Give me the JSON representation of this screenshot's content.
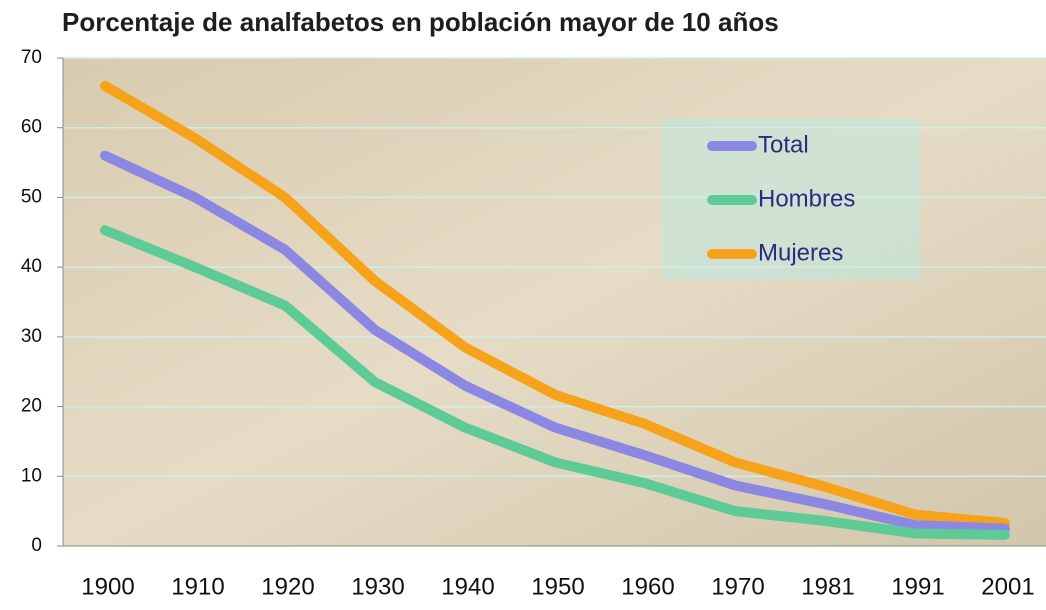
{
  "chart_data": {
    "type": "line",
    "title": "Porcentaje de analfabetos en población mayor de 10 años",
    "categories": [
      "1900",
      "1910",
      "1920",
      "1930",
      "1940",
      "1950",
      "1960",
      "1970",
      "1981",
      "1991",
      "2001"
    ],
    "series": [
      {
        "name": "Total",
        "color": "#8b87e2",
        "values": [
          56,
          50,
          42.5,
          31,
          23,
          17,
          13,
          8.7,
          6,
          3,
          2.5
        ]
      },
      {
        "name": "Hombres",
        "color": "#5ecb97",
        "values": [
          45.3,
          40,
          34.5,
          23.5,
          17,
          12,
          9,
          5,
          3.6,
          1.8,
          1.6
        ]
      },
      {
        "name": "Mujeres",
        "color": "#f7a21b",
        "values": [
          66,
          58.5,
          50,
          38,
          28.5,
          21.7,
          17.5,
          12,
          8.5,
          4.5,
          3.3
        ]
      }
    ],
    "ylim": [
      0,
      70
    ],
    "yticks": [
      0,
      10,
      20,
      30,
      40,
      50,
      60,
      70
    ],
    "grid": true
  }
}
